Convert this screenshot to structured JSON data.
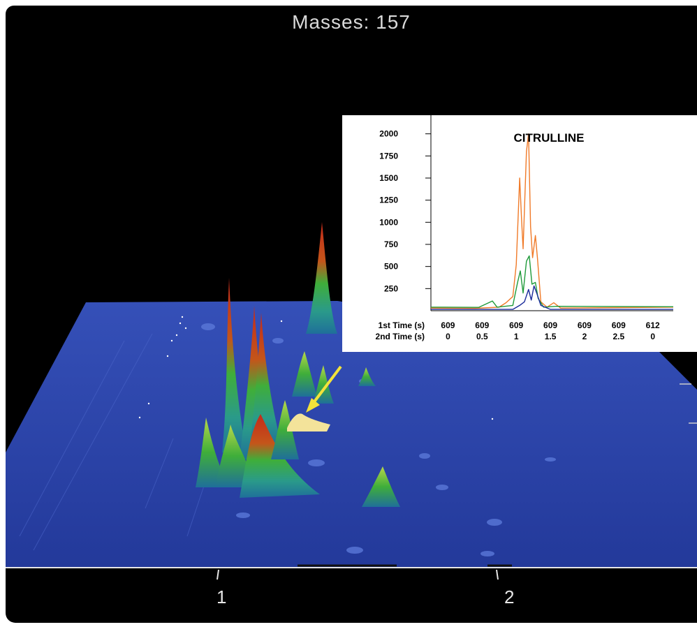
{
  "masses_title": "Masses: 157",
  "main_axis": {
    "tick_labels": [
      "1",
      "2"
    ]
  },
  "colors": {
    "plot_surface": "#2a43a8",
    "background": "#000000",
    "arrow": "#f2e23a",
    "highlight_peak": "#f3e39a",
    "peak_top": "#c42a1a",
    "peak_mid": "#3fae3a",
    "peak_base": "#1f8f9a"
  },
  "chart_data": {
    "type": "line",
    "title": "CITRULLINE",
    "y_ticks": [
      250,
      500,
      750,
      1000,
      1250,
      1500,
      1750,
      2000
    ],
    "ylim": [
      0,
      2100
    ],
    "x_row1_label": "1st Time (s)",
    "x_row2_label": "2nd Time (s)",
    "x_ticks_1st_time": [
      "609",
      "609",
      "609",
      "609",
      "609",
      "609",
      "612"
    ],
    "x_ticks_2nd_time": [
      "0",
      "0.5",
      "1",
      "1.5",
      "2",
      "2.5",
      "0"
    ],
    "x_tick_positions": [
      0,
      0.5,
      1,
      1.5,
      2,
      2.5,
      3
    ],
    "xlim": [
      -0.25,
      3.3
    ],
    "series": [
      {
        "color": "#f07a28",
        "points": [
          [
            -0.25,
            30
          ],
          [
            0.4,
            28
          ],
          [
            0.75,
            40
          ],
          [
            0.85,
            90
          ],
          [
            0.95,
            160
          ],
          [
            1.0,
            520
          ],
          [
            1.05,
            1500
          ],
          [
            1.08,
            1000
          ],
          [
            1.1,
            700
          ],
          [
            1.15,
            1800
          ],
          [
            1.18,
            2000
          ],
          [
            1.21,
            950
          ],
          [
            1.24,
            600
          ],
          [
            1.28,
            850
          ],
          [
            1.31,
            600
          ],
          [
            1.36,
            100
          ],
          [
            1.45,
            40
          ],
          [
            1.55,
            90
          ],
          [
            1.65,
            30
          ],
          [
            3.3,
            40
          ]
        ]
      },
      {
        "color": "#1f9a3a",
        "points": [
          [
            -0.25,
            40
          ],
          [
            0.45,
            38
          ],
          [
            0.65,
            110
          ],
          [
            0.72,
            40
          ],
          [
            0.95,
            60
          ],
          [
            1.02,
            320
          ],
          [
            1.06,
            450
          ],
          [
            1.1,
            200
          ],
          [
            1.15,
            560
          ],
          [
            1.19,
            620
          ],
          [
            1.23,
            300
          ],
          [
            1.28,
            320
          ],
          [
            1.32,
            140
          ],
          [
            1.4,
            40
          ],
          [
            1.6,
            50
          ],
          [
            3.3,
            45
          ]
        ]
      },
      {
        "color": "#1a2a9a",
        "points": [
          [
            -0.25,
            15
          ],
          [
            0.95,
            15
          ],
          [
            1.05,
            60
          ],
          [
            1.12,
            100
          ],
          [
            1.18,
            240
          ],
          [
            1.22,
            120
          ],
          [
            1.26,
            280
          ],
          [
            1.3,
            200
          ],
          [
            1.36,
            60
          ],
          [
            1.5,
            15
          ],
          [
            3.3,
            15
          ]
        ]
      }
    ]
  }
}
